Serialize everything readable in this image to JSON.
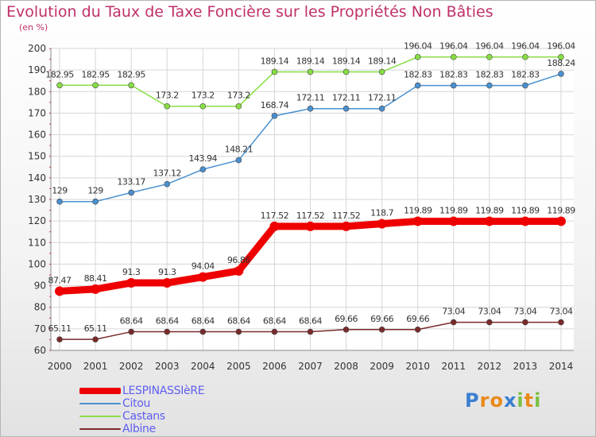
{
  "chart_data": {
    "type": "line",
    "title": "Evolution du Taux de Taxe Foncière sur les Propriétés Non Bâties",
    "unit": "(en %)",
    "x": [
      "2000",
      "2001",
      "2002",
      "2003",
      "2004",
      "2005",
      "2006",
      "2007",
      "2008",
      "2009",
      "2010",
      "2011",
      "2012",
      "2013",
      "2014"
    ],
    "ylim": [
      60,
      200
    ],
    "yticks": [
      60,
      70,
      80,
      90,
      100,
      110,
      120,
      130,
      140,
      150,
      160,
      170,
      180,
      190,
      200
    ],
    "grid": true,
    "legend_position": "bottom-left",
    "series": [
      {
        "name": "LESPINASSIèRE",
        "color": "#ee0000",
        "emphasis": true,
        "values": [
          87.47,
          88.41,
          91.3,
          91.3,
          94.04,
          96.86,
          117.52,
          117.52,
          117.52,
          118.7,
          119.89,
          119.89,
          119.89,
          119.89,
          119.89
        ],
        "labels": [
          "87.47",
          "88.41",
          "91.3",
          "91.3",
          "94.04",
          "96.86",
          "117.52",
          "117.52",
          "117.52",
          "118.7",
          "119.89",
          "119.89",
          "119.89",
          "119.89",
          "119.89"
        ]
      },
      {
        "name": "Citou",
        "color": "#4a90d0",
        "emphasis": false,
        "values": [
          129,
          129,
          133.17,
          137.12,
          143.94,
          148.21,
          168.74,
          172.11,
          172.11,
          172.11,
          182.83,
          182.83,
          182.83,
          182.83,
          188.24
        ],
        "labels": [
          "129",
          "129",
          "133.17",
          "137.12",
          "143.94",
          "148.21",
          "168.74",
          "172.11",
          "172.11",
          "172.11",
          "182.83",
          "182.83",
          "182.83",
          "182.83",
          "188.24"
        ]
      },
      {
        "name": "Castans",
        "color": "#88dd44",
        "emphasis": false,
        "values": [
          182.95,
          182.95,
          182.95,
          173.2,
          173.2,
          173.2,
          189.14,
          189.14,
          189.14,
          189.14,
          196.04,
          196.04,
          196.04,
          196.04,
          196.04
        ],
        "labels": [
          "182.95",
          "182.95",
          "182.95",
          "173.2",
          "173.2",
          "173.2",
          "189.14",
          "189.14",
          "189.14",
          "189.14",
          "196.04",
          "196.04",
          "196.04",
          "196.04",
          "196.04"
        ]
      },
      {
        "name": "Albine",
        "color": "#7a2a2a",
        "emphasis": false,
        "values": [
          65.11,
          65.11,
          68.64,
          68.64,
          68.64,
          68.64,
          68.64,
          68.64,
          69.66,
          69.66,
          69.66,
          73.04,
          73.04,
          73.04,
          73.04
        ],
        "labels": [
          "65.11",
          "65.11",
          "68.64",
          "68.64",
          "68.64",
          "68.64",
          "68.64",
          "68.64",
          "69.66",
          "69.66",
          "69.66",
          "73.04",
          "73.04",
          "73.04",
          "73.04"
        ]
      }
    ]
  },
  "logo": {
    "letters": [
      "P",
      "r",
      "o",
      "x",
      "i",
      "t",
      "i"
    ],
    "colors": [
      "#3a7fd0",
      "#e88a1a",
      "#e88a1a",
      "#3a7fd0",
      "#7ac043",
      "#e88a1a",
      "#7ac043"
    ]
  }
}
